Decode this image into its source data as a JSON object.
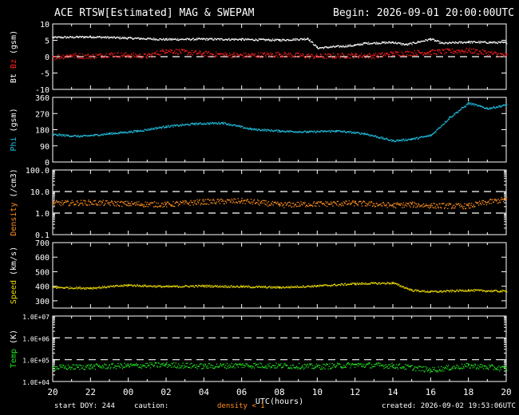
{
  "header": {
    "title": "ACE RTSW[Estimated] MAG & SWEPAM",
    "begin": "Begin: 2026-09-01 20:00:00UTC"
  },
  "footer": {
    "start": "start DOY: 244",
    "caution": "caution:",
    "density_note": "density < 1",
    "created": "created: 2026-09-02 19:53:06UTC"
  },
  "colors": {
    "bt": "#ffffff",
    "bz": "#ff2020",
    "phi": "#20c0e0",
    "density": "#ff9020",
    "speed": "#e8d800",
    "temp": "#20e020",
    "note": "#ff9020"
  },
  "chart_data": [
    {
      "type": "scatter",
      "panel": "bz-bt",
      "ylabel_parts": [
        "Bt",
        "Bz",
        "(gsm)"
      ],
      "ylim": [
        -10,
        10
      ],
      "yticks": [
        "-10",
        "-5",
        "0",
        "5",
        "10"
      ],
      "ref_lines": [
        0
      ],
      "series": [
        {
          "name": "Bt",
          "x": [
            0,
            2,
            4,
            6,
            8,
            10,
            12,
            13.5,
            14,
            16,
            16.5,
            18,
            18.7,
            20,
            20.6,
            22,
            24
          ],
          "values": [
            6,
            6.2,
            5.8,
            5.4,
            5.5,
            5.4,
            5.2,
            5.6,
            2.8,
            3.6,
            4.2,
            4.5,
            3.8,
            5.5,
            4.2,
            4.6,
            4.4
          ]
        },
        {
          "name": "Bz",
          "x": [
            0,
            1,
            2,
            3,
            4,
            5,
            6,
            8,
            10,
            12,
            14,
            16,
            17,
            18,
            20,
            22,
            24
          ],
          "values": [
            0,
            0.5,
            0.2,
            0.8,
            0.5,
            0.3,
            2,
            1,
            0.5,
            0.8,
            0.2,
            0.5,
            0.4,
            1,
            1.5,
            2,
            0.5
          ]
        }
      ]
    },
    {
      "type": "scatter",
      "panel": "phi",
      "ylabel_parts": [
        "Phi",
        "(gsm)"
      ],
      "ylim": [
        0,
        360
      ],
      "yticks": [
        "0",
        "90",
        "180",
        "270",
        "360"
      ],
      "series": [
        {
          "name": "Phi",
          "x": [
            0,
            1.5,
            3,
            4.5,
            6,
            7.5,
            9,
            10.5,
            12,
            13.5,
            15,
            16.5,
            18,
            19,
            20,
            21,
            22,
            23,
            24
          ],
          "values": [
            155,
            145,
            160,
            175,
            200,
            215,
            220,
            185,
            175,
            170,
            175,
            160,
            120,
            130,
            150,
            250,
            330,
            300,
            320
          ]
        }
      ]
    },
    {
      "type": "scatter",
      "panel": "density",
      "ylabel_parts": [
        "Density",
        "(/cm3)"
      ],
      "log": true,
      "ylim": [
        0.1,
        100
      ],
      "yticks": [
        "0.1",
        "1.0",
        "10.0",
        "100.0"
      ],
      "ref_lines": [
        1,
        10
      ],
      "series": [
        {
          "name": "Density",
          "x": [
            0,
            2,
            4,
            6,
            8,
            10,
            12,
            14,
            16,
            18,
            19,
            20,
            22,
            24
          ],
          "values": [
            3,
            3.2,
            2.8,
            2.6,
            3.5,
            3.8,
            2.5,
            2.8,
            3,
            2.4,
            2.6,
            2.3,
            2.2,
            4.5
          ]
        }
      ]
    },
    {
      "type": "scatter",
      "panel": "speed",
      "ylabel_parts": [
        "Speed",
        "(km/s)"
      ],
      "ylim": [
        250,
        700
      ],
      "yticks": [
        "300",
        "400",
        "500",
        "600",
        "700"
      ],
      "series": [
        {
          "name": "Speed",
          "x": [
            0,
            2,
            4,
            6,
            8,
            10,
            12,
            14,
            16,
            18,
            19,
            20,
            22,
            24
          ],
          "values": [
            395,
            390,
            410,
            400,
            405,
            400,
            395,
            405,
            420,
            425,
            375,
            365,
            375,
            368
          ]
        }
      ]
    },
    {
      "type": "scatter",
      "panel": "temp",
      "ylabel_parts": [
        "Temp",
        "(K)"
      ],
      "log": true,
      "ylim": [
        10000,
        10000000
      ],
      "yticks": [
        "1.0E+04",
        "1.0E+05",
        "1.0E+06",
        "1.0E+07"
      ],
      "ref_lines": [
        100000,
        1000000
      ],
      "series": [
        {
          "name": "Temp",
          "x": [
            0,
            2,
            4,
            6,
            8,
            10,
            12,
            14,
            16,
            18,
            20,
            22,
            24
          ],
          "values": [
            45000,
            50000,
            55000,
            60000,
            52000,
            58000,
            55000,
            50000,
            60000,
            55000,
            35000,
            55000,
            40000
          ]
        }
      ]
    }
  ],
  "x_axis": {
    "label": "UTC(hours)",
    "ticks": [
      "20",
      "22",
      "00",
      "02",
      "04",
      "06",
      "08",
      "10",
      "12",
      "14",
      "16",
      "18",
      "20"
    ]
  }
}
